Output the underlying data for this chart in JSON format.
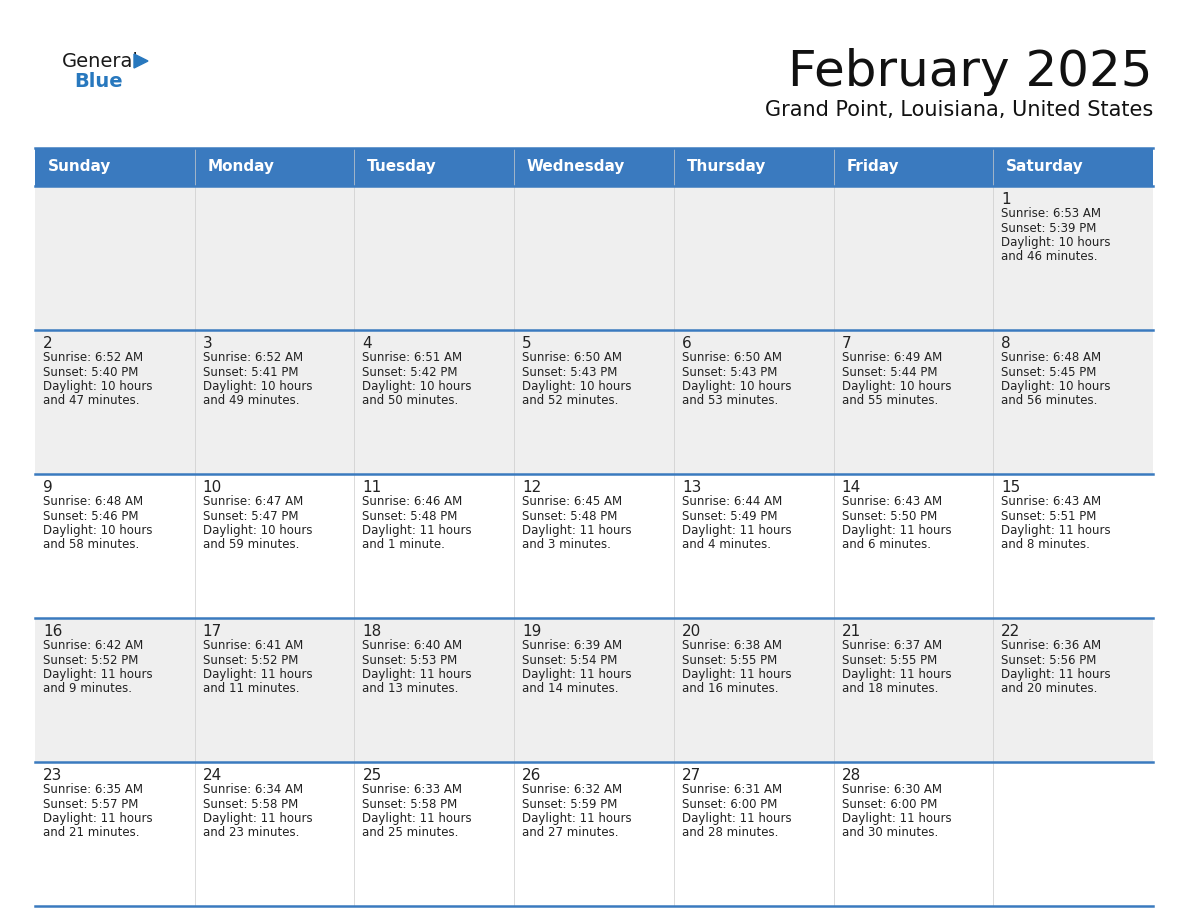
{
  "title": "February 2025",
  "subtitle": "Grand Point, Louisiana, United States",
  "header_color": "#3A7ABF",
  "header_text_color": "#FFFFFF",
  "day_names": [
    "Sunday",
    "Monday",
    "Tuesday",
    "Wednesday",
    "Thursday",
    "Friday",
    "Saturday"
  ],
  "background_color": "#FFFFFF",
  "cell_bg_row0": "#EFEFEF",
  "cell_bg_row1": "#EFEFEF",
  "cell_bg_row2": "#FFFFFF",
  "cell_bg_row3": "#EFEFEF",
  "cell_bg_row4": "#FFFFFF",
  "separator_color": "#3A7ABF",
  "date_color": "#222222",
  "text_color": "#222222",
  "logo_general_color": "#1a1a1a",
  "logo_blue_color": "#2878BE",
  "days": [
    {
      "date": 1,
      "row": 0,
      "col": 6,
      "sunrise": "6:53 AM",
      "sunset": "5:39 PM",
      "daylight_h": "10 hours",
      "daylight_m": "and 46 minutes."
    },
    {
      "date": 2,
      "row": 1,
      "col": 0,
      "sunrise": "6:52 AM",
      "sunset": "5:40 PM",
      "daylight_h": "10 hours",
      "daylight_m": "and 47 minutes."
    },
    {
      "date": 3,
      "row": 1,
      "col": 1,
      "sunrise": "6:52 AM",
      "sunset": "5:41 PM",
      "daylight_h": "10 hours",
      "daylight_m": "and 49 minutes."
    },
    {
      "date": 4,
      "row": 1,
      "col": 2,
      "sunrise": "6:51 AM",
      "sunset": "5:42 PM",
      "daylight_h": "10 hours",
      "daylight_m": "and 50 minutes."
    },
    {
      "date": 5,
      "row": 1,
      "col": 3,
      "sunrise": "6:50 AM",
      "sunset": "5:43 PM",
      "daylight_h": "10 hours",
      "daylight_m": "and 52 minutes."
    },
    {
      "date": 6,
      "row": 1,
      "col": 4,
      "sunrise": "6:50 AM",
      "sunset": "5:43 PM",
      "daylight_h": "10 hours",
      "daylight_m": "and 53 minutes."
    },
    {
      "date": 7,
      "row": 1,
      "col": 5,
      "sunrise": "6:49 AM",
      "sunset": "5:44 PM",
      "daylight_h": "10 hours",
      "daylight_m": "and 55 minutes."
    },
    {
      "date": 8,
      "row": 1,
      "col": 6,
      "sunrise": "6:48 AM",
      "sunset": "5:45 PM",
      "daylight_h": "10 hours",
      "daylight_m": "and 56 minutes."
    },
    {
      "date": 9,
      "row": 2,
      "col": 0,
      "sunrise": "6:48 AM",
      "sunset": "5:46 PM",
      "daylight_h": "10 hours",
      "daylight_m": "and 58 minutes."
    },
    {
      "date": 10,
      "row": 2,
      "col": 1,
      "sunrise": "6:47 AM",
      "sunset": "5:47 PM",
      "daylight_h": "10 hours",
      "daylight_m": "and 59 minutes."
    },
    {
      "date": 11,
      "row": 2,
      "col": 2,
      "sunrise": "6:46 AM",
      "sunset": "5:48 PM",
      "daylight_h": "11 hours",
      "daylight_m": "and 1 minute."
    },
    {
      "date": 12,
      "row": 2,
      "col": 3,
      "sunrise": "6:45 AM",
      "sunset": "5:48 PM",
      "daylight_h": "11 hours",
      "daylight_m": "and 3 minutes."
    },
    {
      "date": 13,
      "row": 2,
      "col": 4,
      "sunrise": "6:44 AM",
      "sunset": "5:49 PM",
      "daylight_h": "11 hours",
      "daylight_m": "and 4 minutes."
    },
    {
      "date": 14,
      "row": 2,
      "col": 5,
      "sunrise": "6:43 AM",
      "sunset": "5:50 PM",
      "daylight_h": "11 hours",
      "daylight_m": "and 6 minutes."
    },
    {
      "date": 15,
      "row": 2,
      "col": 6,
      "sunrise": "6:43 AM",
      "sunset": "5:51 PM",
      "daylight_h": "11 hours",
      "daylight_m": "and 8 minutes."
    },
    {
      "date": 16,
      "row": 3,
      "col": 0,
      "sunrise": "6:42 AM",
      "sunset": "5:52 PM",
      "daylight_h": "11 hours",
      "daylight_m": "and 9 minutes."
    },
    {
      "date": 17,
      "row": 3,
      "col": 1,
      "sunrise": "6:41 AM",
      "sunset": "5:52 PM",
      "daylight_h": "11 hours",
      "daylight_m": "and 11 minutes."
    },
    {
      "date": 18,
      "row": 3,
      "col": 2,
      "sunrise": "6:40 AM",
      "sunset": "5:53 PM",
      "daylight_h": "11 hours",
      "daylight_m": "and 13 minutes."
    },
    {
      "date": 19,
      "row": 3,
      "col": 3,
      "sunrise": "6:39 AM",
      "sunset": "5:54 PM",
      "daylight_h": "11 hours",
      "daylight_m": "and 14 minutes."
    },
    {
      "date": 20,
      "row": 3,
      "col": 4,
      "sunrise": "6:38 AM",
      "sunset": "5:55 PM",
      "daylight_h": "11 hours",
      "daylight_m": "and 16 minutes."
    },
    {
      "date": 21,
      "row": 3,
      "col": 5,
      "sunrise": "6:37 AM",
      "sunset": "5:55 PM",
      "daylight_h": "11 hours",
      "daylight_m": "and 18 minutes."
    },
    {
      "date": 22,
      "row": 3,
      "col": 6,
      "sunrise": "6:36 AM",
      "sunset": "5:56 PM",
      "daylight_h": "11 hours",
      "daylight_m": "and 20 minutes."
    },
    {
      "date": 23,
      "row": 4,
      "col": 0,
      "sunrise": "6:35 AM",
      "sunset": "5:57 PM",
      "daylight_h": "11 hours",
      "daylight_m": "and 21 minutes."
    },
    {
      "date": 24,
      "row": 4,
      "col": 1,
      "sunrise": "6:34 AM",
      "sunset": "5:58 PM",
      "daylight_h": "11 hours",
      "daylight_m": "and 23 minutes."
    },
    {
      "date": 25,
      "row": 4,
      "col": 2,
      "sunrise": "6:33 AM",
      "sunset": "5:58 PM",
      "daylight_h": "11 hours",
      "daylight_m": "and 25 minutes."
    },
    {
      "date": 26,
      "row": 4,
      "col": 3,
      "sunrise": "6:32 AM",
      "sunset": "5:59 PM",
      "daylight_h": "11 hours",
      "daylight_m": "and 27 minutes."
    },
    {
      "date": 27,
      "row": 4,
      "col": 4,
      "sunrise": "6:31 AM",
      "sunset": "6:00 PM",
      "daylight_h": "11 hours",
      "daylight_m": "and 28 minutes."
    },
    {
      "date": 28,
      "row": 4,
      "col": 5,
      "sunrise": "6:30 AM",
      "sunset": "6:00 PM",
      "daylight_h": "11 hours",
      "daylight_m": "and 30 minutes."
    }
  ]
}
